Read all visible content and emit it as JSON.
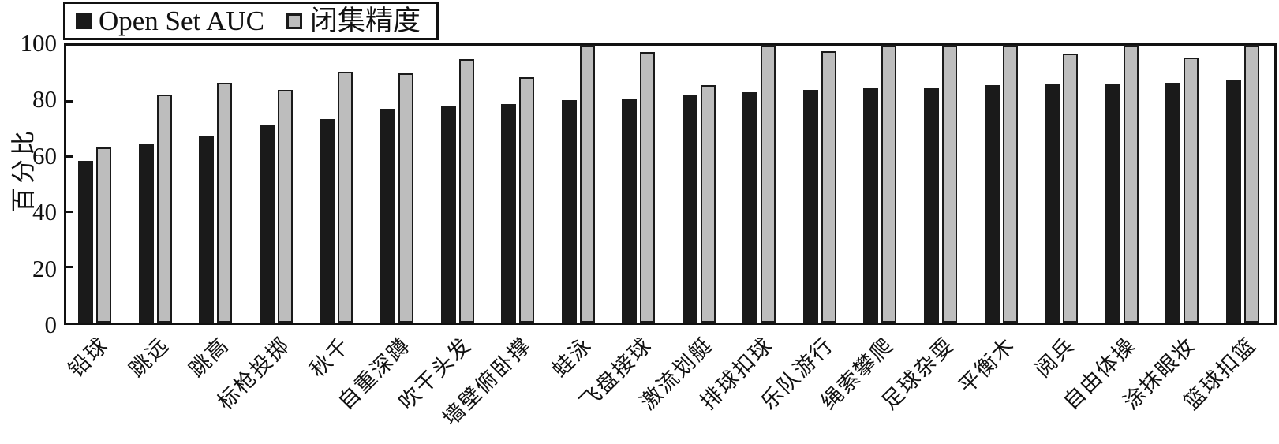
{
  "legend": {
    "border_color": "#111111",
    "items": [
      {
        "label": "Open Set AUC",
        "swatch_color": "#1a1a1a"
      },
      {
        "label": "闭集精度",
        "swatch_color": "#bdbdbd"
      }
    ]
  },
  "chart_data": {
    "type": "bar",
    "title": "",
    "xlabel": "",
    "ylabel": "百分比",
    "ylim": [
      0,
      100
    ],
    "yticks": [
      0,
      20,
      40,
      60,
      80,
      100
    ],
    "grid": false,
    "legend_position": "top-left, outside plot",
    "categories": [
      "铅球",
      "跳远",
      "跳高",
      "标枪投掷",
      "秋千",
      "自重深蹲",
      "吹干头发",
      "墙壁俯卧撑",
      "蛙泳",
      "飞盘接球",
      "激流划艇",
      "排球扣球",
      "乐队游行",
      "绳索攀爬",
      "足球杂耍",
      "平衡木",
      "阅兵",
      "自由体操",
      "涂抹眼妆",
      "篮球扣篮"
    ],
    "series": [
      {
        "name": "Open Set AUC",
        "color": "#1a1a1a",
        "values": [
          58.5,
          64.5,
          67.5,
          71.5,
          73.5,
          77.3,
          78.3,
          79.0,
          80.3,
          81.0,
          82.3,
          83.3,
          84.0,
          84.5,
          85.0,
          85.8,
          86.0,
          86.2,
          86.5,
          87.5
        ]
      },
      {
        "name": "闭集精度",
        "color": "#bdbdbd",
        "values": [
          63.0,
          82.0,
          86.3,
          83.8,
          90.3,
          89.7,
          94.8,
          88.3,
          100.0,
          97.5,
          85.5,
          100.0,
          97.8,
          100.0,
          100.0,
          100.0,
          97.0,
          100.0,
          95.5,
          100.0
        ]
      }
    ]
  }
}
